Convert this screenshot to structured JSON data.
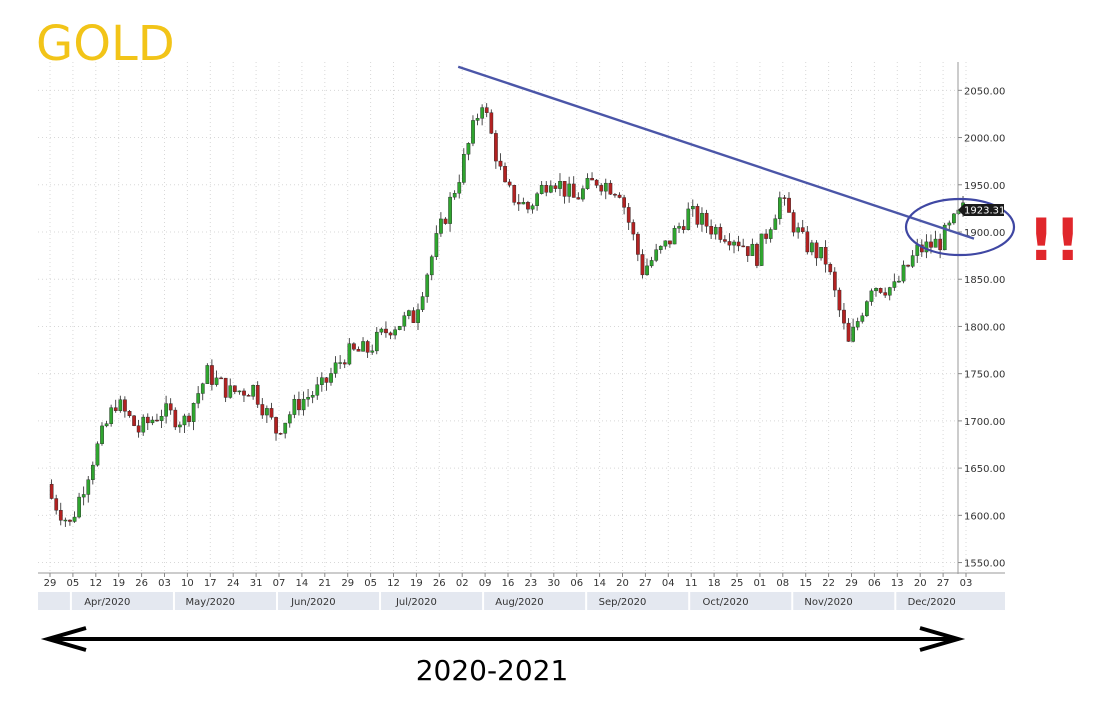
{
  "title": "GOLD",
  "exclamation": "!!",
  "timeline_label": "2020-2021",
  "colors": {
    "title": "#f2c418",
    "up": "#2fa52f",
    "down": "#b22222",
    "trendline": "#4b56a8",
    "circle": "#3f47a3",
    "exclamation": "#e0262b",
    "axis_band": "#e4e8f0",
    "grid": "#d8d8d8"
  },
  "chart_data": {
    "type": "candlestick",
    "ylim": [
      1540,
      2080
    ],
    "y_ticks": [
      1550,
      1600,
      1650,
      1700,
      1750,
      1800,
      1850,
      1900,
      1950,
      2000,
      2050
    ],
    "y_tick_labels": [
      "1550.00",
      "1600.00",
      "1650.00",
      "1700.00",
      "1750.00",
      "1800.00",
      "1850.00",
      "1900.00",
      "1950.00",
      "2000.00",
      "2050.00"
    ],
    "x_day_labels": [
      "29",
      "05",
      "12",
      "19",
      "26",
      "03",
      "10",
      "17",
      "24",
      "31",
      "07",
      "14",
      "21",
      "29",
      "05",
      "12",
      "19",
      "26",
      "02",
      "09",
      "16",
      "23",
      "30",
      "06",
      "14",
      "20",
      "27",
      "04",
      "11",
      "18",
      "25",
      "01",
      "08",
      "15",
      "22",
      "29",
      "06",
      "13",
      "20",
      "27",
      "03"
    ],
    "x_month_labels": [
      "Apr/2020",
      "May/2020",
      "Jun/2020",
      "Jul/2020",
      "Aug/2020",
      "Sep/2020",
      "Oct/2020",
      "Nov/2020",
      "Dec/2020"
    ],
    "last_price_label": "1923.31",
    "trendline": {
      "start": {
        "x_label": "02",
        "value": 2075
      },
      "end": {
        "x_label": "03",
        "value": 1893
      }
    },
    "weekly_closes": [
      1625,
      1590,
      1660,
      1720,
      1690,
      1710,
      1700,
      1750,
      1730,
      1735,
      1690,
      1720,
      1735,
      1770,
      1775,
      1800,
      1810,
      1890,
      1960,
      2040,
      1945,
      1925,
      1960,
      1935,
      1955,
      1945,
      1860,
      1885,
      1920,
      1905,
      1895,
      1875,
      1935,
      1890,
      1870,
      1780,
      1845,
      1840,
      1880,
      1890,
      1923.31
    ]
  }
}
